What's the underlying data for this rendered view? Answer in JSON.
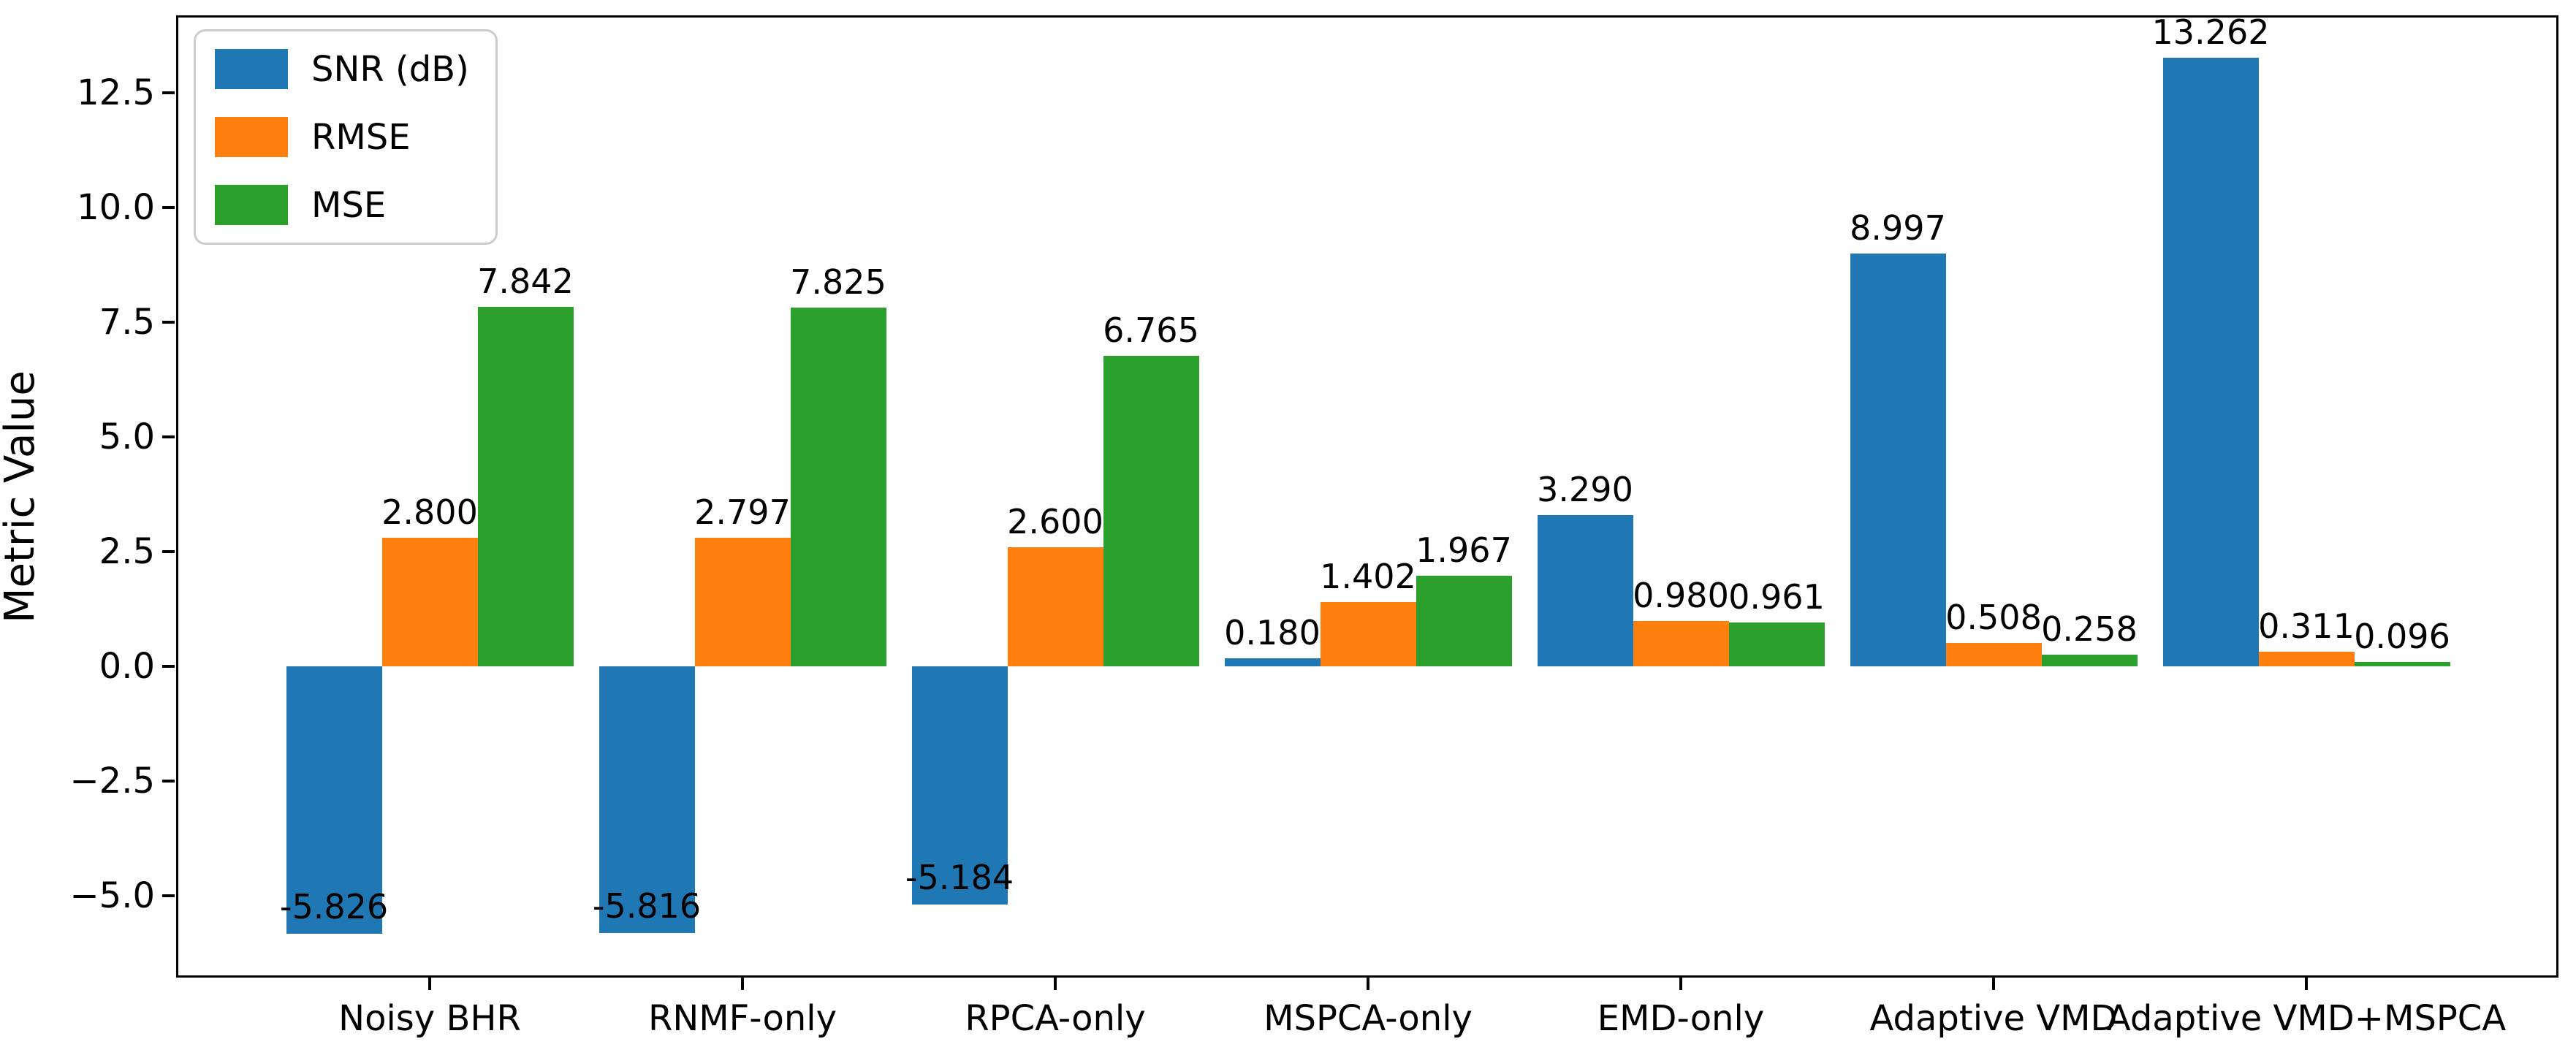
{
  "chart_data": {
    "type": "bar",
    "title": "",
    "xlabel": "",
    "ylabel": "Metric Value",
    "categories": [
      "Noisy BHR",
      "RNMF-only",
      "RPCA-only",
      "MSPCA-only",
      "EMD-only",
      "Adaptive VMD",
      "Adaptive VMD+MSPCA"
    ],
    "series": [
      {
        "name": "SNR (dB)",
        "color": "#1f77b4",
        "values": [
          -5.826,
          -5.816,
          -5.184,
          0.18,
          3.29,
          8.997,
          13.262
        ]
      },
      {
        "name": "RMSE",
        "color": "#ff7f0e",
        "values": [
          2.8,
          2.797,
          2.6,
          1.402,
          0.98,
          0.508,
          0.311
        ]
      },
      {
        "name": "MSE",
        "color": "#2ca02c",
        "values": [
          7.842,
          7.825,
          6.765,
          1.967,
          0.961,
          0.258,
          0.096
        ]
      }
    ],
    "bar_value_labels": [
      [
        "-5.826",
        "-5.816",
        "-5.184",
        "0.180",
        "3.290",
        "8.997",
        "13.262"
      ],
      [
        "2.800",
        "2.797",
        "2.600",
        "1.402",
        "0.980",
        "0.508",
        "0.311"
      ],
      [
        "7.842",
        "7.825",
        "6.765",
        "1.967",
        "0.961",
        "0.258",
        "0.096"
      ]
    ],
    "yticks": {
      "values": [
        12.5,
        10.0,
        7.5,
        5.0,
        2.5,
        0.0,
        -2.5,
        -5.0
      ],
      "labels": [
        "12.5",
        "10.0",
        "7.5",
        "5.0",
        "2.5",
        "0.0",
        "−2.5",
        "−5.0"
      ]
    },
    "ylim": [
      -6.78,
      14.19
    ],
    "grid": false,
    "legend_position": "upper-left",
    "axis_color": "#000000",
    "background_color": "#ffffff"
  }
}
